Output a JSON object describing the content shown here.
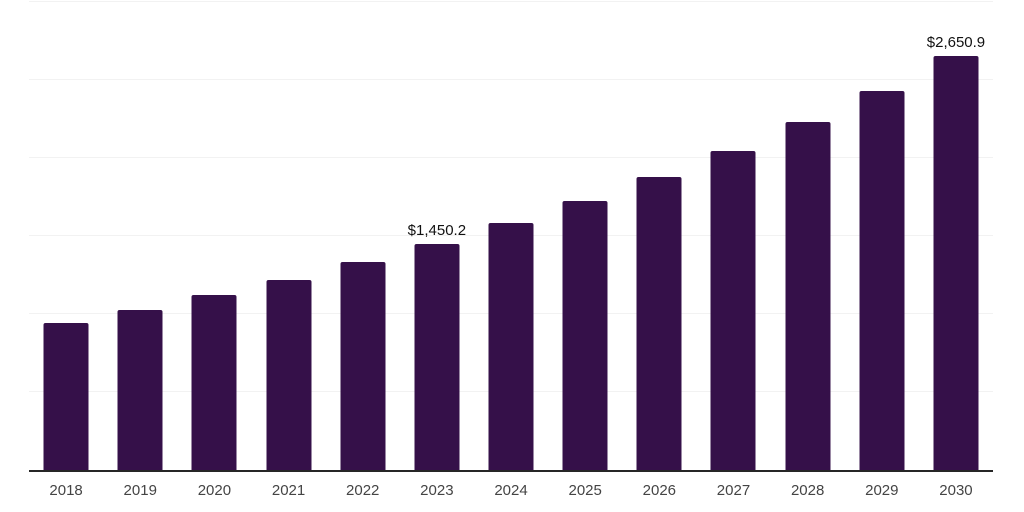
{
  "chart_data": {
    "type": "bar",
    "title": "",
    "xlabel": "",
    "ylabel": "",
    "categories": [
      "2018",
      "2019",
      "2020",
      "2021",
      "2022",
      "2023",
      "2024",
      "2025",
      "2026",
      "2027",
      "2028",
      "2029",
      "2030"
    ],
    "values": [
      942,
      1027,
      1120,
      1221,
      1331,
      1450.2,
      1581,
      1723,
      1878,
      2047,
      2231,
      2432,
      2650.9
    ],
    "data_labels": {
      "2023": "$1,450.2",
      "2030": "$2,650.9"
    },
    "ylim": [
      0,
      3000
    ],
    "grid_step": 500,
    "grid": true,
    "legend": false,
    "colors": {
      "bar": "#351049",
      "gridline": "#f2f2f2",
      "axis_line": "#262626",
      "tick_label": "#444444",
      "data_label": "#111111",
      "background": "#ffffff"
    }
  }
}
